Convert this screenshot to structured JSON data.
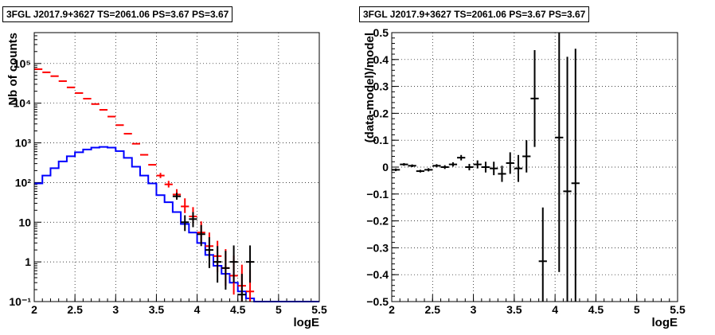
{
  "chart_data": [
    {
      "type": "line",
      "title": "3FGL J2017.9+3627 TS=2061.06 PS=3.67 PS=3.67",
      "xlabel": "logE",
      "ylabel": "Nb of counts",
      "xlim": [
        2,
        5.5
      ],
      "ylim": [
        0.1,
        600000
      ],
      "yscale": "log",
      "grid": true,
      "x_ticks": [
        2,
        2.5,
        3,
        3.5,
        4,
        4.5,
        5,
        5.5
      ],
      "x_tick_labels": [
        "2",
        "2.5",
        "3",
        "3.5",
        "4",
        "4.5",
        "5",
        "5.5"
      ],
      "y_ticks": [
        0.1,
        1,
        10,
        100,
        1000,
        10000,
        100000
      ],
      "y_tick_labels": [
        "10⁻¹",
        "1",
        "10",
        "10²",
        "10³",
        "10⁴",
        "10⁵"
      ],
      "series": [
        {
          "style": "step",
          "color": "#0000ff",
          "edges": [
            2.0,
            2.1,
            2.2,
            2.3,
            2.4,
            2.5,
            2.6,
            2.7,
            2.8,
            2.9,
            3.0,
            3.1,
            3.2,
            3.3,
            3.4,
            3.5,
            3.6,
            3.7,
            3.8,
            3.9,
            4.0,
            4.1,
            4.2,
            4.3,
            4.4,
            4.5,
            4.6,
            4.7,
            4.8,
            4.9,
            5.0,
            5.1,
            5.2,
            5.3,
            5.4,
            5.5
          ],
          "values": [
            95,
            150,
            230,
            340,
            460,
            580,
            680,
            760,
            790,
            760,
            620,
            420,
            250,
            150,
            95,
            48,
            32,
            18,
            9,
            5.5,
            3,
            1.5,
            0.8,
            0.5,
            0.3,
            0.18,
            0.12,
            0.1,
            0.1,
            0.1,
            0.1,
            0.1,
            0.1,
            0.1,
            0.1
          ]
        },
        {
          "style": "errorbar",
          "color": "#ff0000",
          "x": [
            2.05,
            2.15,
            2.25,
            2.35,
            2.45,
            2.55,
            2.65,
            2.75,
            2.85,
            2.95,
            3.05,
            3.15,
            3.25,
            3.35,
            3.45,
            3.55,
            3.65,
            3.75,
            3.85,
            3.95,
            4.05,
            4.15,
            4.25,
            4.35,
            4.45,
            4.55,
            4.65
          ],
          "values": [
            72000,
            60000,
            48000,
            36000,
            25000,
            18000,
            13000,
            9500,
            6800,
            4600,
            2800,
            1700,
            950,
            500,
            280,
            150,
            90,
            50,
            25,
            14,
            5.5,
            2.5,
            1.4,
            0.7,
            0.45,
            0.25,
            0.18
          ],
          "yerr_low": [
            0,
            0,
            0,
            0,
            0,
            0,
            0,
            0,
            0,
            0,
            0,
            0,
            0,
            0,
            0,
            20,
            15,
            12,
            8,
            5,
            2.5,
            1.3,
            0.85,
            0.45,
            0.3,
            0.15,
            0.1
          ],
          "yerr_high": [
            0,
            0,
            0,
            0,
            0,
            0,
            0,
            0,
            0,
            0,
            0,
            0,
            0,
            0,
            0,
            25,
            20,
            18,
            15,
            10,
            5,
            3,
            2,
            1.4,
            1.0,
            0.6,
            0.45
          ]
        },
        {
          "style": "errorbar",
          "color": "#000000",
          "x": [
            3.75,
            3.85,
            3.95,
            4.05,
            4.15,
            4.25,
            4.35,
            4.45,
            4.55,
            4.65
          ],
          "values": [
            45,
            10,
            12,
            5,
            2,
            1,
            0.7,
            1,
            0.15,
            1
          ],
          "yerr_low": [
            8,
            4,
            4.5,
            2.5,
            1.3,
            0.7,
            0.5,
            0.7,
            0.1,
            0.7
          ],
          "yerr_high": [
            10,
            5,
            6,
            3.5,
            2.2,
            1.5,
            1.2,
            1.6,
            0.35,
            1.6
          ]
        }
      ]
    },
    {
      "type": "scatter",
      "title": "3FGL J2017.9+3627 TS=2061.06 PS=3.67 PS=3.67",
      "xlabel": "logE",
      "ylabel": "(data-model)/model",
      "xlim": [
        2,
        5.5
      ],
      "ylim": [
        -0.5,
        0.5
      ],
      "grid": true,
      "x_ticks": [
        2,
        2.5,
        3,
        3.5,
        4,
        4.5,
        5,
        5.5
      ],
      "x_tick_labels": [
        "2",
        "2.5",
        "3",
        "3.5",
        "4",
        "4.5",
        "5",
        "5.5"
      ],
      "y_ticks": [
        -0.5,
        -0.4,
        -0.3,
        -0.2,
        -0.1,
        0,
        0.1,
        0.2,
        0.3,
        0.4,
        0.5
      ],
      "y_tick_labels": [
        "−0.5",
        "−0.4",
        "−0.3",
        "−0.2",
        "−0.1",
        "0",
        "0.1",
        "0.2",
        "0.3",
        "0.4",
        "0.5"
      ],
      "series": [
        {
          "style": "errorbar",
          "color": "#000000",
          "x": [
            2.05,
            2.15,
            2.25,
            2.35,
            2.45,
            2.55,
            2.65,
            2.75,
            2.85,
            2.95,
            3.05,
            3.15,
            3.25,
            3.35,
            3.45,
            3.55,
            3.65,
            3.75,
            3.85,
            4.05,
            4.15,
            4.25
          ],
          "values": [
            -0.01,
            0.01,
            0.005,
            -0.015,
            -0.01,
            0.005,
            0.0,
            0.01,
            0.035,
            0.0,
            0.01,
            0.0,
            -0.005,
            -0.025,
            0.015,
            -0.005,
            0.04,
            0.255,
            -0.35,
            0.11,
            -0.09,
            -0.06
          ],
          "yerr_low": [
            0.005,
            0.005,
            0.005,
            0.005,
            0.006,
            0.006,
            0.007,
            0.008,
            0.01,
            0.012,
            0.015,
            0.02,
            0.025,
            0.03,
            0.04,
            0.05,
            0.06,
            0.18,
            0.2,
            0.5,
            0.5,
            0.5
          ],
          "yerr_high": [
            0.005,
            0.005,
            0.005,
            0.005,
            0.006,
            0.006,
            0.007,
            0.008,
            0.01,
            0.012,
            0.015,
            0.02,
            0.025,
            0.03,
            0.04,
            0.05,
            0.06,
            0.18,
            0.2,
            0.5,
            0.5,
            0.5
          ]
        }
      ]
    }
  ]
}
